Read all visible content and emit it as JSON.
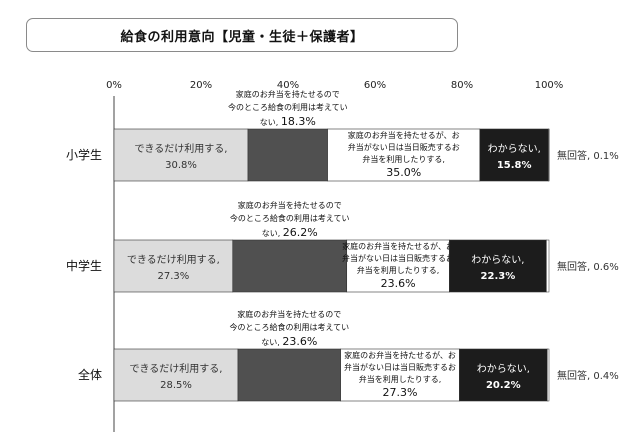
{
  "chart_data": {
    "type": "bar",
    "orientation": "horizontal",
    "stacked": true,
    "title": "給食の利用意向【児童・生徒＋保護者】",
    "xlim": [
      0,
      100
    ],
    "x_ticks": [
      "0%",
      "20%",
      "40%",
      "60%",
      "80%",
      "100%"
    ],
    "grid": false,
    "categories": [
      "小学生",
      "中学生",
      "全体"
    ],
    "series": [
      {
        "label_lines": [
          "できるだけ利用する,"
        ],
        "values": [
          30.8,
          27.3,
          28.5
        ],
        "value_labels": [
          "30.8%",
          "27.3%",
          "28.5%"
        ],
        "color": "#dcdcdc",
        "text_color": "#333333"
      },
      {
        "label_lines": [
          "家庭のお弁当を持たせるので",
          "今のところ給食の利用は考えてい",
          "ない,"
        ],
        "values": [
          18.3,
          26.2,
          23.6
        ],
        "value_labels": [
          "18.3%",
          "26.2%",
          "23.6%"
        ],
        "color": "#505050",
        "text_color": "#111111"
      },
      {
        "label_lines": [
          "家庭のお弁当を持たせるが、お",
          "弁当がない日は当日販売するお",
          "弁当を利用したりする,"
        ],
        "values": [
          35.0,
          23.6,
          27.3
        ],
        "value_labels": [
          "35.0%",
          "23.6%",
          "27.3%"
        ],
        "color": "#ffffff",
        "text_color": "#111111"
      },
      {
        "label_lines": [
          "わからない,"
        ],
        "values": [
          15.8,
          22.3,
          20.2
        ],
        "value_labels": [
          "15.8%",
          "22.3%",
          "20.2%"
        ],
        "color": "#1c1c1c",
        "text_color": "#ffffff"
      },
      {
        "label": "無回答",
        "values": [
          0.1,
          0.6,
          0.4
        ],
        "value_labels": [
          "無回答, 0.1%",
          "無回答, 0.6%",
          "無回答, 0.4%"
        ],
        "color": "#ffffff",
        "text_color": "#333333"
      }
    ]
  }
}
